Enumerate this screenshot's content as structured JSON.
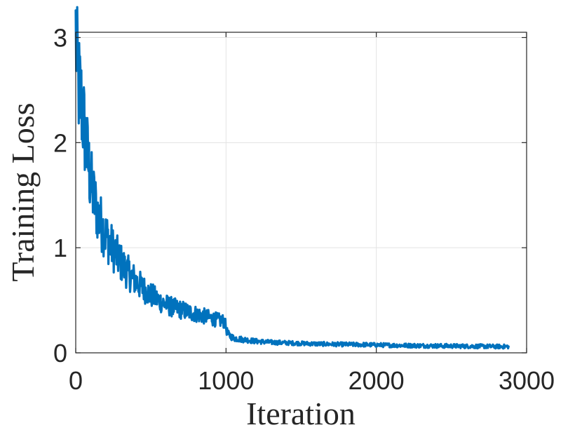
{
  "chart_data": {
    "type": "line",
    "title": "",
    "xlabel": "Iteration",
    "ylabel": "Training Loss",
    "xlim": [
      0,
      3000
    ],
    "ylim": [
      0,
      3.05
    ],
    "xticks": [
      0,
      1000,
      2000,
      3000
    ],
    "xtick_labels": [
      "0",
      "1000",
      "2000",
      "3000"
    ],
    "yticks": [
      0,
      1,
      2,
      3
    ],
    "ytick_labels": [
      "0",
      "1",
      "2",
      "3"
    ],
    "grid": true,
    "legend": "none",
    "series_color": "#0072BD",
    "series": [
      {
        "x": [
          0,
          10,
          20,
          40,
          60,
          80,
          100,
          120,
          150,
          200,
          250,
          300,
          350,
          400,
          450,
          500,
          550,
          600,
          650,
          700,
          750,
          800,
          850,
          900,
          950,
          990,
          1010,
          1050,
          1100,
          1200,
          1300,
          1400,
          1500,
          1600,
          1700,
          1800,
          1900,
          2000,
          2100,
          2200,
          2300,
          2400,
          2500,
          2600,
          2700,
          2800,
          2880
        ],
        "y": [
          3.05,
          2.7,
          2.55,
          2.35,
          2.1,
          1.85,
          1.62,
          1.48,
          1.3,
          1.12,
          0.98,
          0.86,
          0.76,
          0.68,
          0.61,
          0.55,
          0.5,
          0.46,
          0.43,
          0.41,
          0.39,
          0.37,
          0.35,
          0.33,
          0.31,
          0.3,
          0.18,
          0.14,
          0.13,
          0.11,
          0.1,
          0.095,
          0.09,
          0.085,
          0.082,
          0.08,
          0.078,
          0.075,
          0.072,
          0.07,
          0.068,
          0.066,
          0.065,
          0.063,
          0.062,
          0.06,
          0.06
        ]
      }
    ]
  }
}
